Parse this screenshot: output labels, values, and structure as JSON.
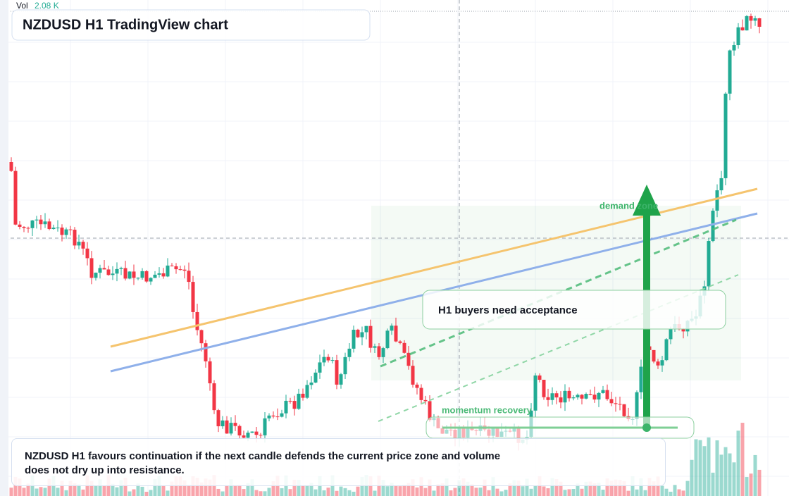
{
  "header": {
    "volume_label": "Vol",
    "volume_value": "2.08 K",
    "title": "NZDUSD H1 TradingView chart"
  },
  "annotations": {
    "zone": "demand zone",
    "callout": "H1 buyers need acceptance",
    "momentum": "momentum recovery"
  },
  "footer": {
    "text": "NZDUSD H1 favours continuation if the next candle defends the current price zone and volume does not dry up into resistance."
  }
}
